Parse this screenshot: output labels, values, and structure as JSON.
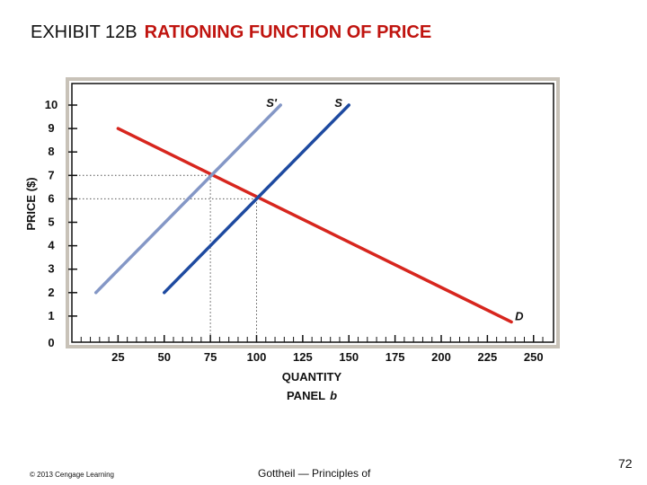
{
  "slide": {
    "title_lead": "EXHIBIT 12B",
    "title_main": "RATIONING FUNCTION OF PRICE",
    "copyright": "© 2013 Cengage Learning",
    "source": "Gottheil — Principles of",
    "page_number": "72"
  },
  "chart_data": {
    "type": "line",
    "xlabel": "QUANTITY",
    "ylabel": "PRICE ($)",
    "subtitle_text": "PANEL",
    "subtitle_letter": "b",
    "xlim": [
      0,
      262
    ],
    "ylim": [
      0,
      10.5
    ],
    "x_ticks": [
      "25",
      "50",
      "75",
      "100",
      "125",
      "150",
      "175",
      "200",
      "225",
      "250"
    ],
    "x_tick_values": [
      25,
      50,
      75,
      100,
      125,
      150,
      175,
      200,
      225,
      250
    ],
    "y_ticks": [
      "0",
      "1",
      "2",
      "3",
      "4",
      "5",
      "6",
      "7",
      "8",
      "9",
      "10"
    ],
    "y_tick_values": [
      0,
      1,
      2,
      3,
      4,
      5,
      6,
      7,
      8,
      9,
      10
    ],
    "series": [
      {
        "name": "D",
        "color": "#d7261e",
        "points": [
          [
            25,
            9
          ],
          [
            238,
            0.75
          ]
        ]
      },
      {
        "name": "S'",
        "color": "#8497c6",
        "points": [
          [
            13,
            2
          ],
          [
            113,
            10
          ]
        ]
      },
      {
        "name": "S",
        "color": "#1e4aa0",
        "points": [
          [
            50,
            2
          ],
          [
            150,
            10
          ]
        ]
      }
    ],
    "guides": [
      {
        "x": 75,
        "y": 7
      },
      {
        "x": 100,
        "y": 6
      }
    ],
    "frame_color": "#c8c2b8"
  }
}
